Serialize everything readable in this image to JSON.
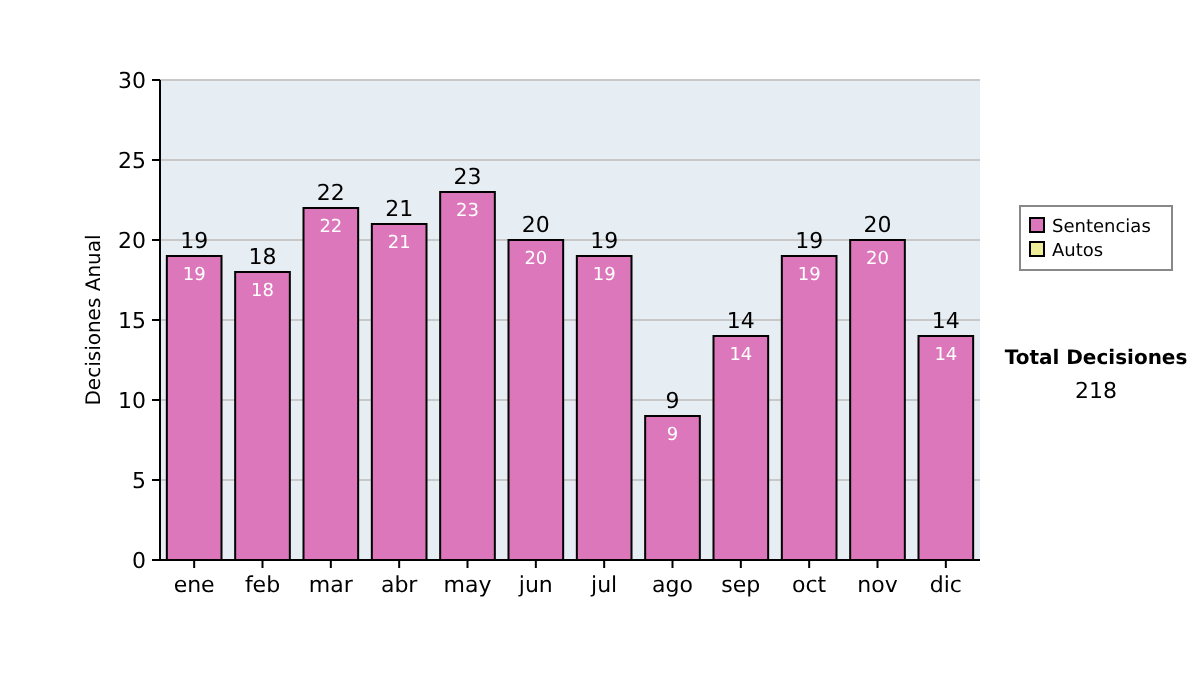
{
  "chart_data": {
    "type": "bar",
    "ylabel": "Decisiones Anual",
    "categories": [
      "ene",
      "feb",
      "mar",
      "abr",
      "may",
      "jun",
      "jul",
      "ago",
      "sep",
      "oct",
      "nov",
      "dic"
    ],
    "series": [
      {
        "name": "Sentencias",
        "color": "#dd77bb",
        "values": [
          19,
          18,
          22,
          21,
          23,
          20,
          19,
          9,
          14,
          19,
          20,
          14
        ]
      },
      {
        "name": "Autos",
        "color": "#eeee99",
        "values": [
          null,
          null,
          null,
          null,
          null,
          null,
          null,
          null,
          null,
          null,
          null,
          null
        ]
      }
    ],
    "ylim": [
      0,
      30
    ],
    "yticks": [
      0,
      5,
      10,
      15,
      20,
      25,
      30
    ],
    "grid": "y",
    "legend": "right",
    "data_labels": true,
    "totals": [
      "19",
      "18",
      "22",
      "21",
      "23",
      "20",
      "19",
      "9",
      "14",
      "19",
      "20",
      "14"
    ],
    "annotations": [
      "Total Decisiones",
      "218"
    ]
  }
}
